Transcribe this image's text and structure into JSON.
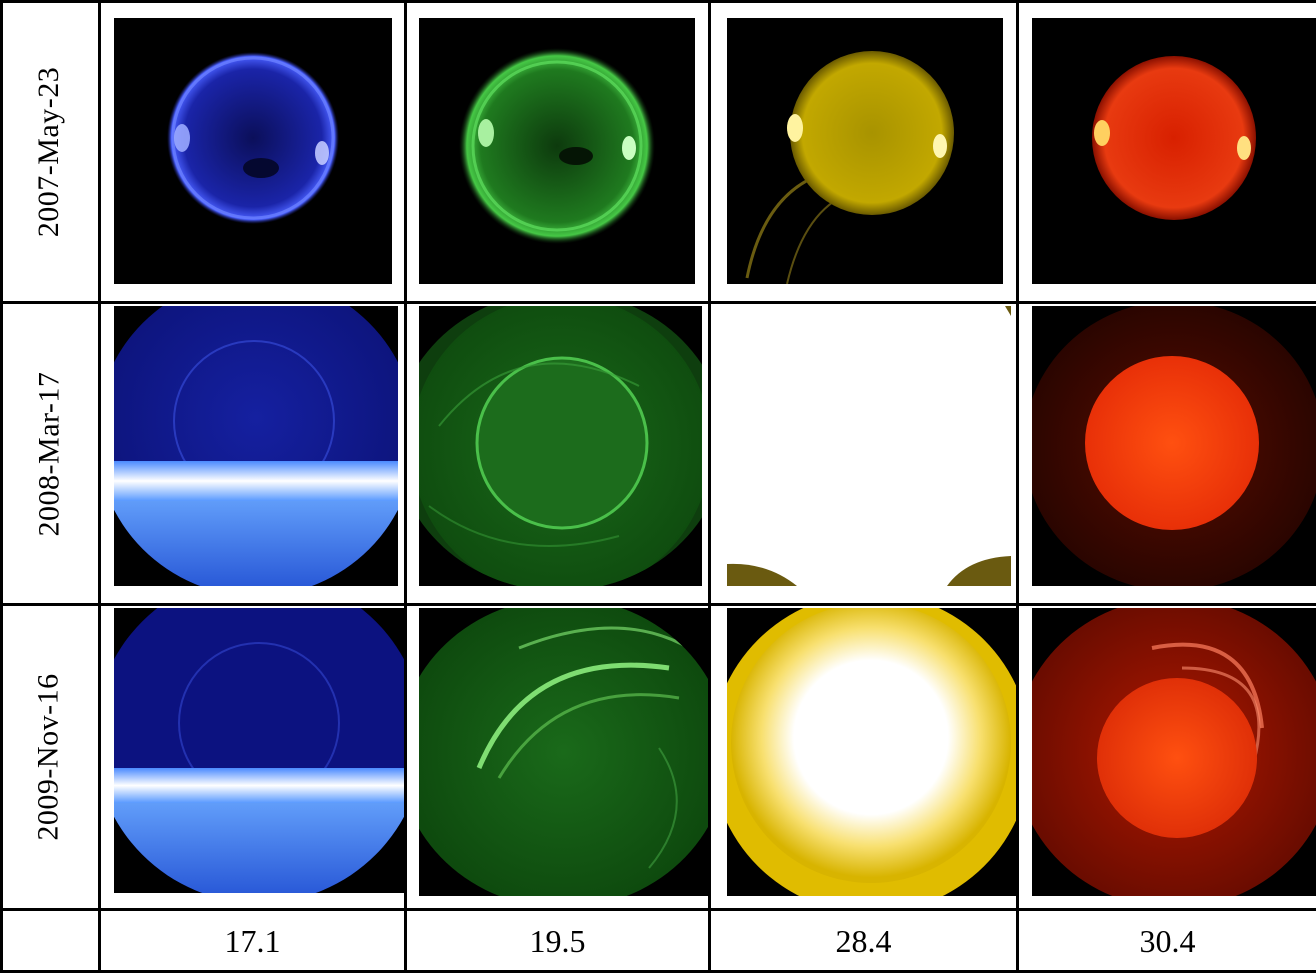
{
  "rows": [
    {
      "date": "2007-May-23"
    },
    {
      "date": "2008-Mar-17"
    },
    {
      "date": "2009-Nov-16"
    }
  ],
  "columns": [
    {
      "wavelength": "17.1",
      "color": "#2a34c8"
    },
    {
      "wavelength": "19.5",
      "color": "#2aa02a"
    },
    {
      "wavelength": "28.4",
      "color": "#d4b800"
    },
    {
      "wavelength": "30.4",
      "color": "#e0280e"
    }
  ]
}
